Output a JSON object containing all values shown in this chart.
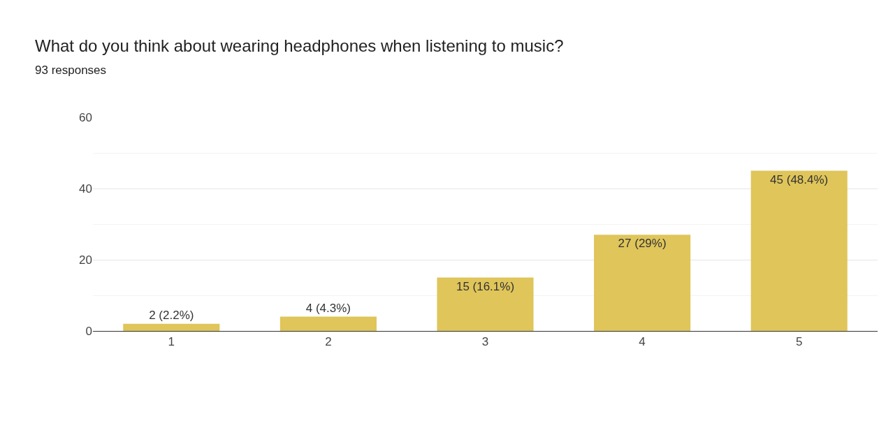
{
  "chart_data": {
    "type": "bar",
    "title": "What do you think about wearing headphones when listening to music?",
    "subtitle": "93 responses",
    "categories": [
      "1",
      "2",
      "3",
      "4",
      "5"
    ],
    "values": [
      2,
      4,
      15,
      27,
      45
    ],
    "value_labels": [
      "2 (2.2%)",
      "4 (4.3%)",
      "15 (16.1%)",
      "27 (29%)",
      "45 (48.4%)"
    ],
    "color": "#dfc55a",
    "ylim": [
      0,
      60
    ],
    "yticks": [
      0,
      20,
      40,
      60
    ],
    "grid": "y"
  }
}
